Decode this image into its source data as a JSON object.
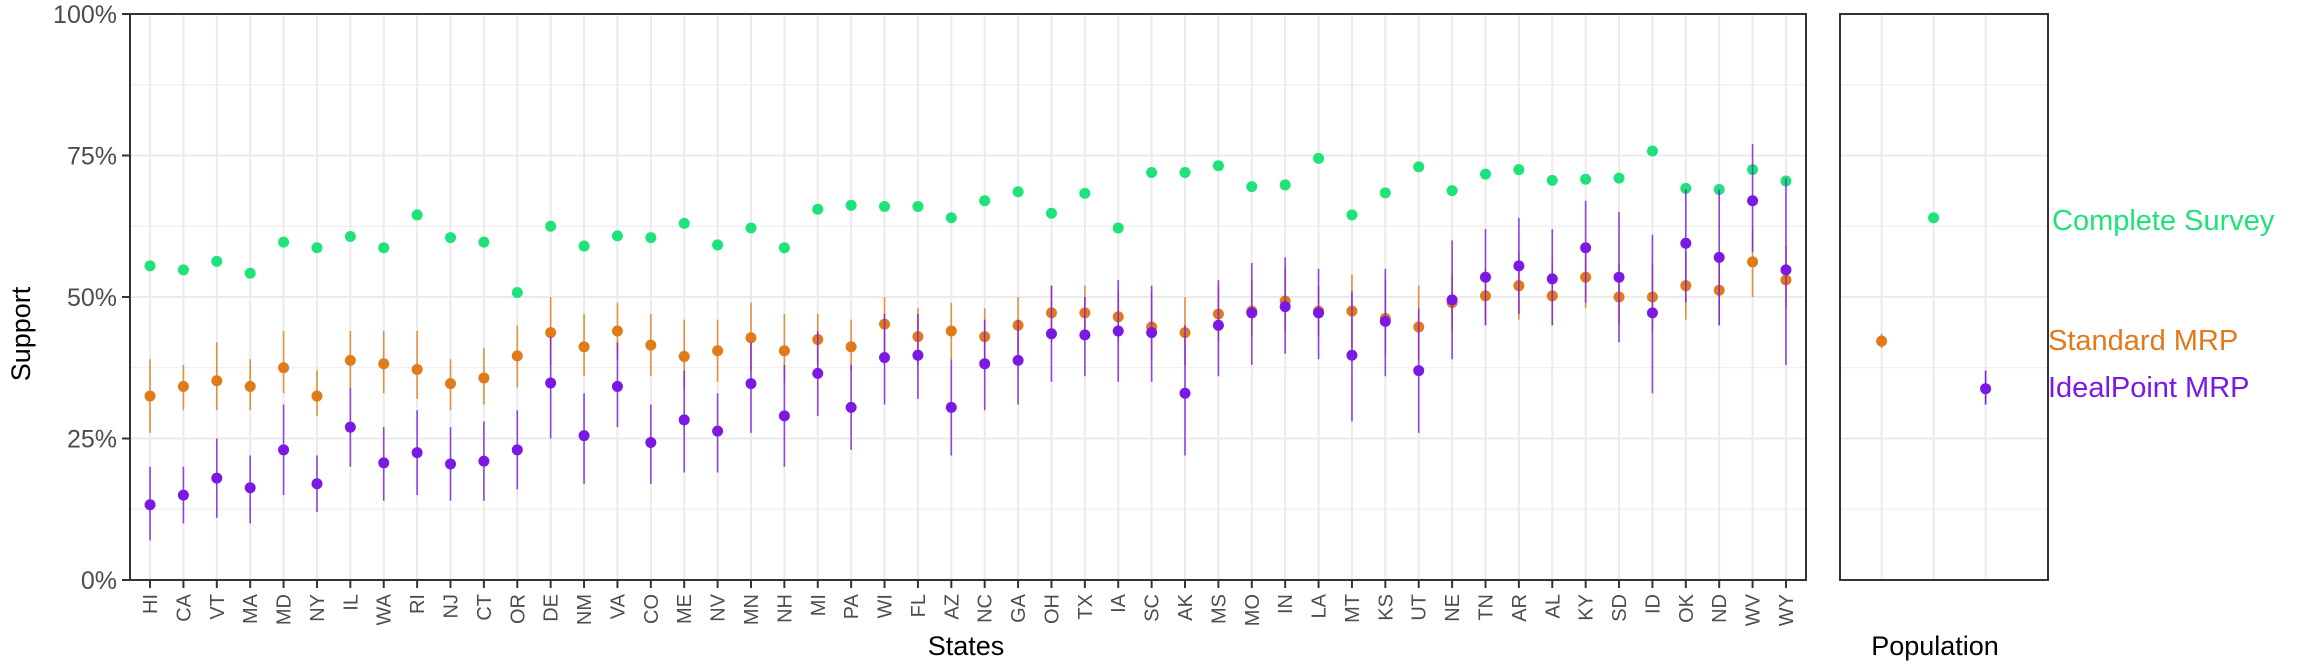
{
  "colors": {
    "complete": "#1ee37a",
    "standard": "#e07a1b",
    "idealpoint": "#7b18e3",
    "grid": "#ebebeb",
    "panel_border": "#333333"
  },
  "chart_data": [
    {
      "type": "scatter",
      "xlabel": "States",
      "ylabel": "Support",
      "ylim": [
        0,
        1
      ],
      "y_ticks": [
        0,
        0.25,
        0.5,
        0.75,
        1
      ],
      "y_tick_labels": [
        "0%",
        "25%",
        "50%",
        "75%",
        "100%"
      ],
      "grid": true,
      "categories": [
        "HI",
        "CA",
        "VT",
        "MA",
        "MD",
        "NY",
        "IL",
        "WA",
        "RI",
        "NJ",
        "CT",
        "OR",
        "DE",
        "NM",
        "VA",
        "CO",
        "ME",
        "NV",
        "MN",
        "NH",
        "MI",
        "PA",
        "WI",
        "FL",
        "AZ",
        "NC",
        "GA",
        "OH",
        "TX",
        "IA",
        "SC",
        "AK",
        "MS",
        "MO",
        "IN",
        "LA",
        "MT",
        "KS",
        "UT",
        "NE",
        "TN",
        "AR",
        "AL",
        "KY",
        "SD",
        "ID",
        "OK",
        "ND",
        "WV",
        "WY"
      ],
      "series": [
        {
          "name": "Complete Survey",
          "values": [
            0.555,
            0.548,
            0.563,
            0.542,
            0.597,
            0.587,
            0.607,
            0.587,
            0.645,
            0.605,
            0.597,
            0.508,
            0.625,
            0.59,
            0.608,
            0.605,
            0.63,
            0.592,
            0.622,
            0.587,
            0.655,
            0.662,
            0.66,
            0.66,
            0.64,
            0.67,
            0.686,
            0.648,
            0.683,
            0.622,
            0.72,
            0.72,
            0.732,
            0.695,
            0.698,
            0.745,
            0.645,
            0.684,
            0.73,
            0.688,
            0.717,
            0.725,
            0.706,
            0.708,
            0.71,
            0.758,
            0.692,
            0.69,
            0.725,
            0.705
          ]
        },
        {
          "name": "Standard MRP",
          "values": [
            0.325,
            0.342,
            0.352,
            0.342,
            0.375,
            0.325,
            0.388,
            0.382,
            0.372,
            0.347,
            0.357,
            0.396,
            0.437,
            0.412,
            0.44,
            0.415,
            0.395,
            0.405,
            0.428,
            0.405,
            0.425,
            0.412,
            0.452,
            0.43,
            0.44,
            0.43,
            0.45,
            0.472,
            0.472,
            0.465,
            0.447,
            0.437,
            0.47,
            0.475,
            0.493,
            0.475,
            0.475,
            0.462,
            0.447,
            0.49,
            0.502,
            0.52,
            0.502,
            0.535,
            0.5,
            0.5,
            0.52,
            0.512,
            0.562,
            0.53
          ],
          "lower": [
            0.26,
            0.3,
            0.3,
            0.3,
            0.33,
            0.29,
            0.34,
            0.33,
            0.32,
            0.3,
            0.31,
            0.34,
            0.38,
            0.36,
            0.39,
            0.36,
            0.34,
            0.35,
            0.37,
            0.35,
            0.38,
            0.37,
            0.4,
            0.38,
            0.39,
            0.39,
            0.4,
            0.42,
            0.43,
            0.42,
            0.39,
            0.38,
            0.42,
            0.43,
            0.44,
            0.43,
            0.41,
            0.4,
            0.39,
            0.44,
            0.45,
            0.46,
            0.45,
            0.48,
            0.45,
            0.44,
            0.46,
            0.45,
            0.5,
            0.48
          ],
          "upper": [
            0.39,
            0.38,
            0.42,
            0.39,
            0.44,
            0.37,
            0.44,
            0.44,
            0.44,
            0.39,
            0.41,
            0.45,
            0.5,
            0.47,
            0.49,
            0.47,
            0.46,
            0.46,
            0.49,
            0.47,
            0.47,
            0.46,
            0.5,
            0.48,
            0.49,
            0.48,
            0.5,
            0.52,
            0.52,
            0.51,
            0.51,
            0.5,
            0.52,
            0.53,
            0.55,
            0.52,
            0.54,
            0.53,
            0.52,
            0.54,
            0.55,
            0.58,
            0.56,
            0.59,
            0.56,
            0.56,
            0.58,
            0.57,
            0.62,
            0.59
          ]
        },
        {
          "name": "IdealPoint MRP",
          "values": [
            0.133,
            0.15,
            0.18,
            0.163,
            0.23,
            0.17,
            0.27,
            0.207,
            0.225,
            0.205,
            0.21,
            0.23,
            0.348,
            0.255,
            0.342,
            0.243,
            0.283,
            0.263,
            0.347,
            0.29,
            0.365,
            0.305,
            0.393,
            0.397,
            0.305,
            0.382,
            0.388,
            0.435,
            0.433,
            0.44,
            0.437,
            0.33,
            0.45,
            0.472,
            0.483,
            0.472,
            0.397,
            0.457,
            0.37,
            0.495,
            0.535,
            0.555,
            0.532,
            0.587,
            0.535,
            0.472,
            0.595,
            0.57,
            0.67,
            0.548
          ],
          "lower": [
            0.07,
            0.1,
            0.11,
            0.1,
            0.15,
            0.12,
            0.2,
            0.14,
            0.15,
            0.14,
            0.14,
            0.16,
            0.25,
            0.17,
            0.27,
            0.17,
            0.19,
            0.19,
            0.26,
            0.2,
            0.29,
            0.23,
            0.31,
            0.32,
            0.22,
            0.3,
            0.31,
            0.35,
            0.36,
            0.35,
            0.35,
            0.22,
            0.36,
            0.38,
            0.4,
            0.39,
            0.28,
            0.36,
            0.26,
            0.39,
            0.45,
            0.47,
            0.45,
            0.49,
            0.42,
            0.33,
            0.49,
            0.45,
            0.58,
            0.38
          ],
          "upper": [
            0.2,
            0.2,
            0.25,
            0.22,
            0.31,
            0.22,
            0.34,
            0.27,
            0.3,
            0.27,
            0.28,
            0.3,
            0.43,
            0.33,
            0.42,
            0.31,
            0.37,
            0.33,
            0.42,
            0.38,
            0.44,
            0.38,
            0.47,
            0.47,
            0.39,
            0.46,
            0.46,
            0.52,
            0.5,
            0.53,
            0.52,
            0.45,
            0.53,
            0.56,
            0.57,
            0.55,
            0.51,
            0.55,
            0.48,
            0.6,
            0.62,
            0.64,
            0.62,
            0.67,
            0.65,
            0.61,
            0.69,
            0.69,
            0.77,
            0.71
          ]
        }
      ]
    },
    {
      "type": "scatter",
      "xlabel": "Population",
      "ylim": [
        0,
        1
      ],
      "grid": true,
      "series": [
        {
          "name": "Standard MRP",
          "value": 0.422,
          "lower": 0.41,
          "upper": 0.435
        },
        {
          "name": "Complete Survey",
          "value": 0.64
        },
        {
          "name": "IdealPoint MRP",
          "value": 0.338,
          "lower": 0.31,
          "upper": 0.37
        }
      ]
    }
  ],
  "legend": [
    {
      "label": "Complete Survey",
      "color": "#1ee37a"
    },
    {
      "label": "Standard MRP",
      "color": "#e07a1b"
    },
    {
      "label": "IdealPoint MRP",
      "color": "#7b18e3"
    }
  ]
}
